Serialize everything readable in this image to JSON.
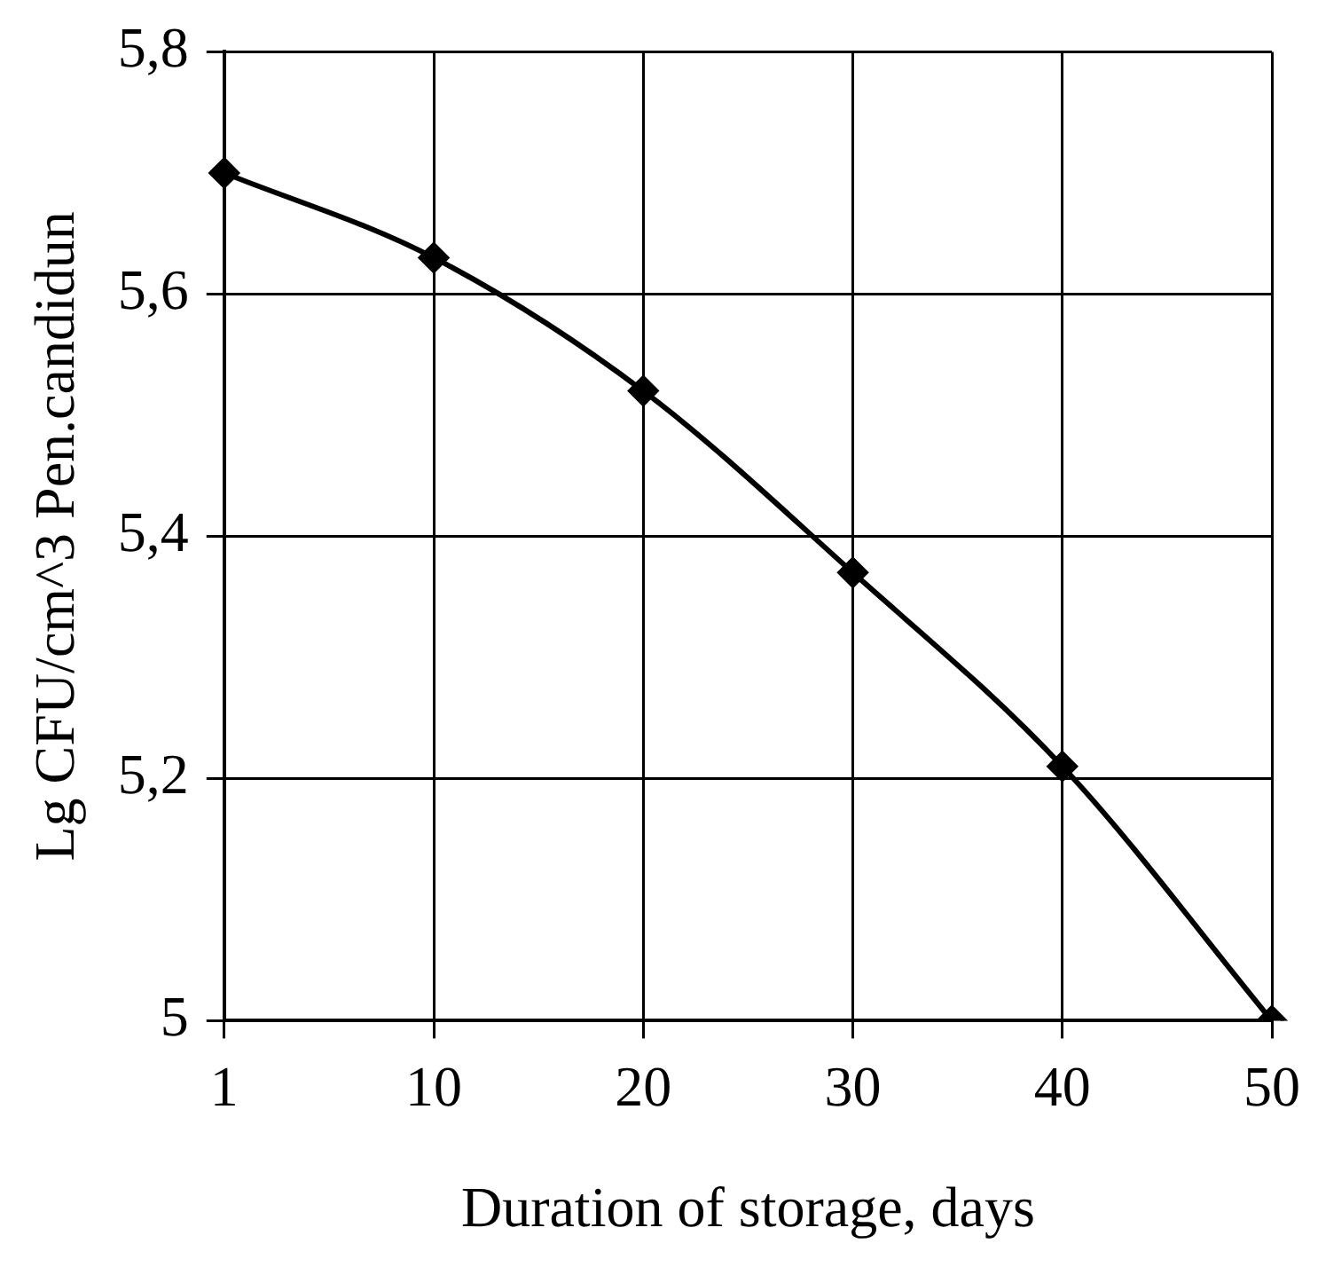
{
  "chart_data": {
    "type": "line",
    "xlabel": "Duration of storage, days",
    "ylabel": "Lg CFU/cm^3 Pen.candidun",
    "categories": [
      "1",
      "10",
      "20",
      "30",
      "40",
      "50"
    ],
    "series": [
      {
        "color": "#000000",
        "values": [
          5.7,
          5.63,
          5.52,
          5.37,
          5.21,
          5.0
        ]
      }
    ],
    "ylim": [
      5,
      5.8
    ],
    "yticks": [
      5,
      {
        "value": 5.2,
        "label": "5,2"
      },
      {
        "value": 5.4,
        "label": "5,4"
      },
      {
        "value": 5.6,
        "label": "5,6"
      },
      {
        "value": 5.8,
        "label": "5,8"
      }
    ],
    "grid": true,
    "legend": false,
    "marker": "diamond",
    "line_style": "solid"
  }
}
